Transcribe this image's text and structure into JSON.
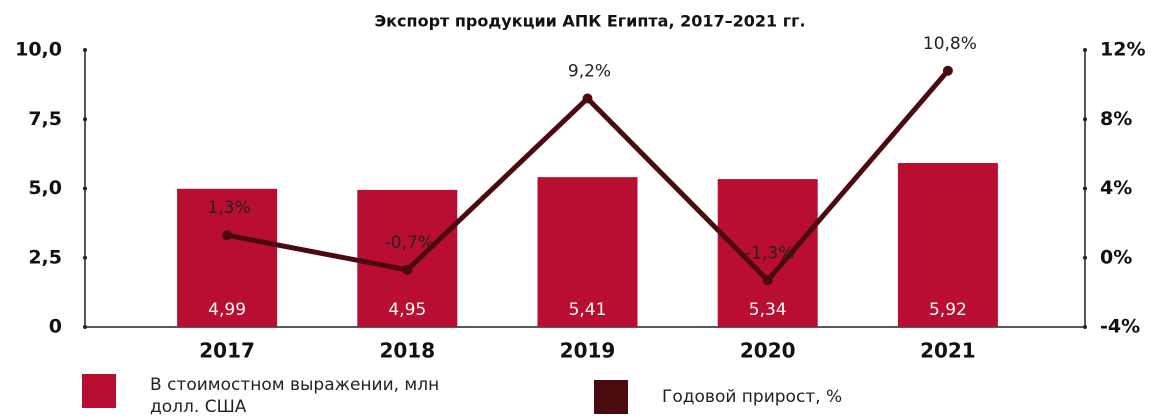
{
  "chart_data": {
    "type": "bar_line",
    "title": "Экспорт продукции АПК Египта, 2017–2021 гг.",
    "categories": [
      "2017",
      "2018",
      "2019",
      "2020",
      "2021"
    ],
    "series": [
      {
        "name": "В стоимостном выражении, млн долл. США",
        "color": "#b90e31",
        "type": "bar",
        "values": [
          4.99,
          4.95,
          5.41,
          5.34,
          5.92
        ],
        "value_labels": [
          "4,99",
          "4,95",
          "5,41",
          "5,34",
          "5,92"
        ]
      },
      {
        "name": "Годовой прирост, %",
        "color": "#4a0a0f",
        "type": "line",
        "axis": "y2",
        "values": [
          1.3,
          -0.7,
          9.2,
          -1.3,
          10.8
        ],
        "value_labels": [
          "1,3%",
          "-0,7%",
          "9,2%",
          "-1,3%",
          "10,8%"
        ]
      }
    ],
    "ylim": [
      0,
      10
    ],
    "yticks": [
      0,
      {
        "value": 2.5,
        "label": "2,5"
      },
      {
        "value": 5,
        "label": "5,0"
      },
      {
        "value": 7.5,
        "label": "7,5"
      },
      {
        "value": 10,
        "label": "10,0"
      }
    ],
    "y2lim": [
      -4,
      12
    ],
    "y2ticks": [
      {
        "value": -4,
        "label": "-4%"
      },
      {
        "value": 0,
        "label": "0%"
      },
      {
        "value": 4,
        "label": "4%"
      },
      {
        "value": 8,
        "label": "8%"
      },
      {
        "value": 12,
        "label": "12%"
      }
    ]
  }
}
